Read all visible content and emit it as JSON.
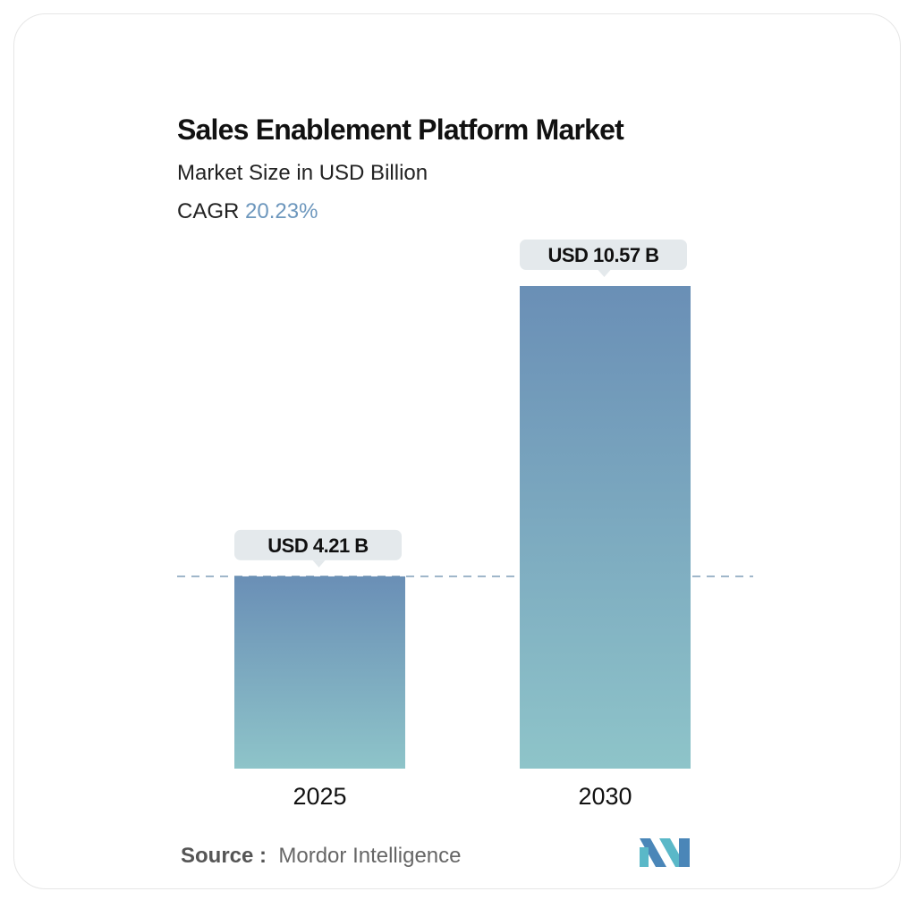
{
  "title": "Sales Enablement Platform Market",
  "subtitle": "Market Size in USD Billion",
  "cagr_label": "CAGR",
  "cagr_value": "20.23%",
  "source_label": "Source :",
  "source_value": "Mordor Intelligence",
  "logo_text": "MI",
  "colors": {
    "bar_top": "#6a8fb6",
    "bar_bottom": "#8ec4c9",
    "cagr": "#6d97bd",
    "label_bg": "#e4e9ec"
  },
  "chart_data": {
    "type": "bar",
    "categories": [
      "2025",
      "2030"
    ],
    "values": [
      4.21,
      10.57
    ],
    "data_labels": [
      "USD 4.21 B",
      "USD 10.57 B"
    ],
    "title": "Sales Enablement Platform Market",
    "subtitle": "Market Size in USD Billion",
    "xlabel": "",
    "ylabel": "",
    "grid": false,
    "reference_line": 4.21
  }
}
